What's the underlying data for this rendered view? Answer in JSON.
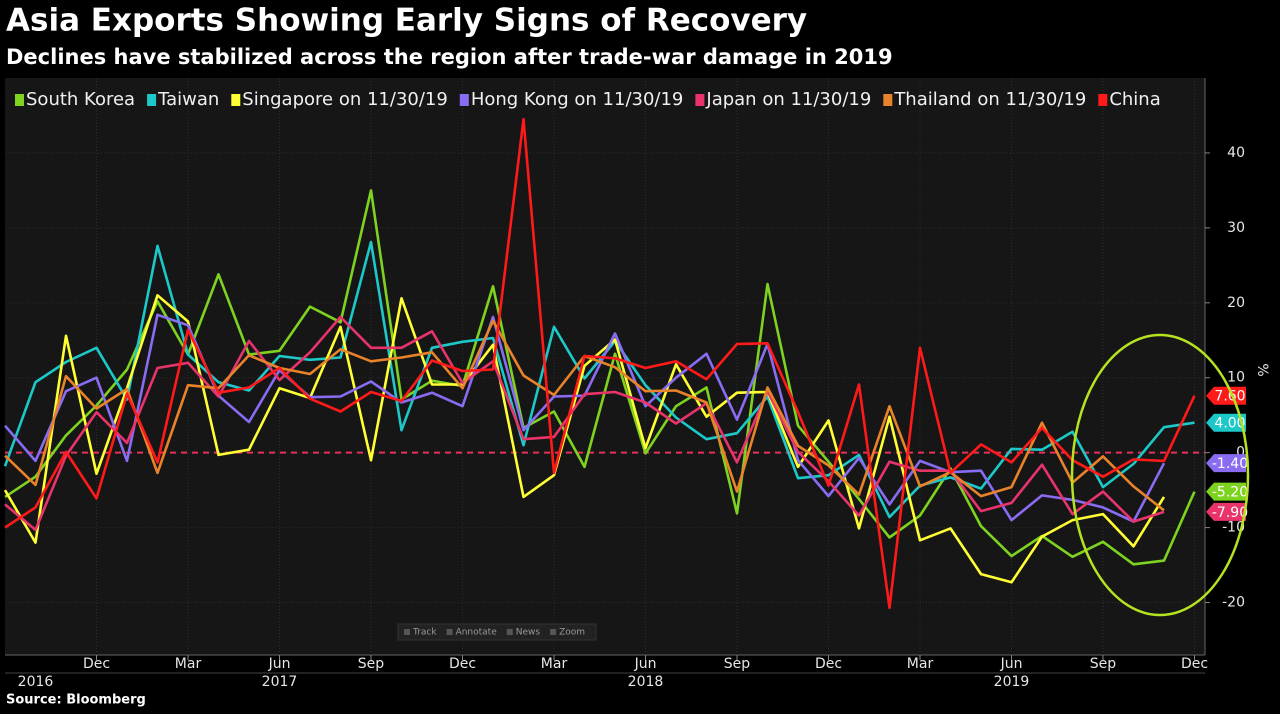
{
  "chart_data": {
    "type": "line",
    "title": "Asia Exports Showing Early Signs of Recovery",
    "subtitle": "Declines have stabilized across the region after trade-war damage in 2019",
    "source": "Source: Bloomberg",
    "y_axis_label": "%",
    "toolbar": [
      "Track",
      "Annotate",
      "News",
      "Zoom"
    ],
    "x": [
      "2016-09",
      "2016-10",
      "2016-11",
      "2016-12",
      "2017-01",
      "2017-02",
      "2017-03",
      "2017-04",
      "2017-05",
      "2017-06",
      "2017-07",
      "2017-08",
      "2017-09",
      "2017-10",
      "2017-11",
      "2017-12",
      "2018-01",
      "2018-02",
      "2018-03",
      "2018-04",
      "2018-05",
      "2018-06",
      "2018-07",
      "2018-08",
      "2018-09",
      "2018-10",
      "2018-11",
      "2018-12",
      "2019-01",
      "2019-02",
      "2019-03",
      "2019-04",
      "2019-05",
      "2019-06",
      "2019-07",
      "2019-08",
      "2019-09",
      "2019-10",
      "2019-11",
      "2019-12"
    ],
    "xticks": [
      {
        "value": "2016-12",
        "label": "Dec"
      },
      {
        "value": "2017-03",
        "label": "Mar"
      },
      {
        "value": "2017-06",
        "label": "Jun"
      },
      {
        "value": "2017-09",
        "label": "Sep"
      },
      {
        "value": "2017-12",
        "label": "Dec"
      },
      {
        "value": "2018-03",
        "label": "Mar"
      },
      {
        "value": "2018-06",
        "label": "Jun"
      },
      {
        "value": "2018-09",
        "label": "Sep"
      },
      {
        "value": "2018-12",
        "label": "Dec"
      },
      {
        "value": "2019-03",
        "label": "Mar"
      },
      {
        "value": "2019-06",
        "label": "Jun"
      },
      {
        "value": "2019-09",
        "label": "Sep"
      },
      {
        "value": "2019-12",
        "label": "Dec"
      }
    ],
    "year_ticks": [
      {
        "value": "2016-10",
        "label": "2016"
      },
      {
        "value": "2017-06",
        "label": "2017"
      },
      {
        "value": "2018-06",
        "label": "2018"
      },
      {
        "value": "2019-06",
        "label": "2019"
      }
    ],
    "ylim": [
      -27,
      50
    ],
    "yticks": [
      -20,
      -10,
      0,
      10,
      20,
      30,
      40
    ],
    "grid": true,
    "zero_line": {
      "value": 0,
      "color": "#e8315a"
    },
    "legend": "top-left",
    "series": [
      {
        "name": "South Korea",
        "color": "#7ed321",
        "end_label": "-5.20",
        "values": [
          -5.9,
          -3.2,
          2.3,
          6.3,
          11.1,
          20.2,
          13.1,
          23.8,
          13.1,
          13.6,
          19.5,
          17.4,
          35,
          7.1,
          9.6,
          8.9,
          22.2,
          3.3,
          5.5,
          -1.9,
          13.2,
          -0.1,
          6.2,
          8.7,
          -8.1,
          22.5,
          3.6,
          -1.2,
          -6.2,
          -11.3,
          -8.4,
          -2.1,
          -9.8,
          -13.8,
          -11.1,
          -13.9,
          -11.9,
          -14.9,
          -14.4,
          -5.2
        ]
      },
      {
        "name": "Taiwan",
        "color": "#1cc8c8",
        "end_label": "4.00",
        "values": [
          -1.8,
          9.4,
          12.1,
          14,
          7.1,
          27.6,
          13.1,
          9.4,
          8.3,
          12.9,
          12.4,
          12.7,
          28.1,
          3.0,
          14.0,
          14.8,
          15.3,
          1.0,
          16.8,
          9.9,
          14.9,
          9.0,
          4.7,
          1.8,
          2.6,
          7.5,
          -3.4,
          -3.0,
          -0.3,
          -8.6,
          -4.4,
          -3.3,
          -4.8,
          0.5,
          0.4,
          2.8,
          -4.6,
          -1.5,
          3.4,
          4.0
        ]
      },
      {
        "name": "Singapore on 11/30/19",
        "color": "#ffff33",
        "values": [
          -5,
          -12,
          15.6,
          -2.8,
          8.6,
          21,
          17.5,
          -0.3,
          0.4,
          8.6,
          7.3,
          16.8,
          -1,
          20.6,
          9.1,
          9.1,
          14.4,
          -5.9,
          -3.0,
          11.6,
          15.1,
          0.6,
          11.8,
          4.8,
          8.0,
          8.1,
          -1.9,
          4.3,
          -10.1,
          4.8,
          -11.7,
          -10.1,
          -16.2,
          -17.3,
          -11.2,
          -9.0,
          -8.2,
          -12.5,
          -5.9,
          null
        ]
      },
      {
        "name": "Hong Kong on 11/30/19",
        "color": "#8a6cf2",
        "end_label": "-1.40",
        "values": [
          3.6,
          -1.1,
          8.2,
          10.0,
          -1.1,
          18.4,
          17.0,
          7.6,
          4.1,
          11.0,
          7.4,
          7.5,
          9.5,
          6.7,
          8.0,
          6.2,
          18.1,
          3.0,
          7.5,
          7.6,
          15.9,
          6.2,
          10.0,
          13.2,
          4.4,
          14.5,
          -1.0,
          -5.8,
          -0.7,
          -6.9,
          -1.1,
          -2.6,
          -2.4,
          -9.0,
          -5.7,
          -6.3,
          -7.3,
          -9.2,
          -1.4,
          null
        ]
      },
      {
        "name": "Japan on 11/30/19",
        "color": "#e8336b",
        "end_label": "-7.90",
        "values": [
          -6.9,
          -10.3,
          -0.4,
          5.4,
          1.3,
          11.3,
          12.0,
          7.5,
          14.9,
          9.7,
          13.4,
          18.1,
          14.0,
          14.0,
          16.2,
          9.3,
          12.2,
          1.8,
          2.1,
          7.8,
          8.1,
          6.7,
          3.9,
          6.6,
          -1.3,
          8.2,
          0.1,
          -3.8,
          -8.4,
          -1.2,
          -2.4,
          -2.4,
          -7.8,
          -6.7,
          -1.6,
          -8.2,
          -5.2,
          -9.2,
          -7.9,
          null
        ]
      },
      {
        "name": "Thailand on 11/30/19",
        "color": "#e8832a",
        "values": [
          -0.4,
          -4.3,
          10.2,
          5.9,
          8.5,
          -2.7,
          9.0,
          8.6,
          13.0,
          11.3,
          10.5,
          13.8,
          12.2,
          12.7,
          13.4,
          8.6,
          17.6,
          10.3,
          7.7,
          12.9,
          11.4,
          8.2,
          8.3,
          6.7,
          -5.2,
          8.7,
          0.9,
          -1.7,
          -5.6,
          6.2,
          -4.5,
          -2.6,
          -5.8,
          -4.6,
          4.0,
          -4.0,
          -0.5,
          -4.5,
          -7.7,
          null
        ]
      },
      {
        "name": "China",
        "color": "#ff1a1a",
        "end_label": "7.60",
        "values": [
          -10.0,
          -7.3,
          0.1,
          -6.1,
          7.9,
          -1.3,
          16.4,
          8.0,
          8.7,
          11.3,
          7.2,
          5.5,
          8.1,
          6.9,
          12.3,
          10.9,
          11.1,
          44.5,
          -2.7,
          12.9,
          12.6,
          11.3,
          12.2,
          9.8,
          14.5,
          14.6,
          5.4,
          -4.4,
          9.1,
          -20.7,
          14.0,
          -2.7,
          1.1,
          -1.3,
          3.3,
          -1.0,
          -3.2,
          -0.9,
          -1.1,
          7.6
        ]
      }
    ]
  }
}
